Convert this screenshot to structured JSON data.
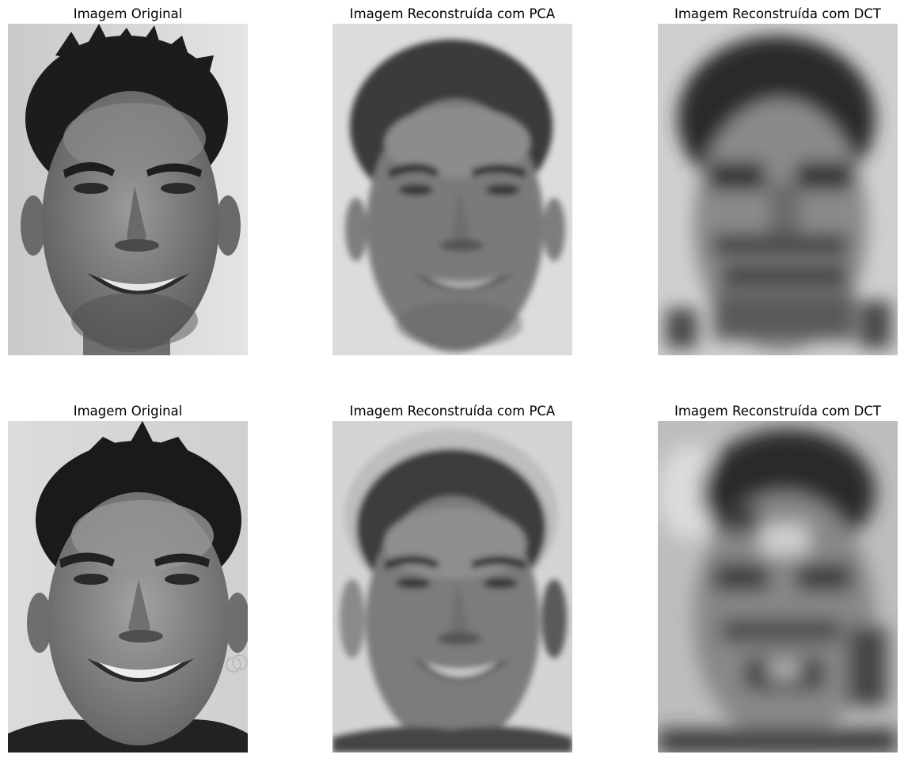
{
  "figure": {
    "panels": [
      {
        "title": "Imagem Original",
        "kind": "original",
        "subject": 1
      },
      {
        "title": "Imagem Reconstruída com PCA",
        "kind": "pca",
        "subject": 1
      },
      {
        "title": "Imagem Reconstruída com DCT",
        "kind": "dct",
        "subject": 1
      },
      {
        "title": "Imagem Original",
        "kind": "original",
        "subject": 2
      },
      {
        "title": "Imagem Reconstruída com PCA",
        "kind": "pca",
        "subject": 2
      },
      {
        "title": "Imagem Reconstruída com DCT",
        "kind": "dct",
        "subject": 2
      }
    ]
  }
}
